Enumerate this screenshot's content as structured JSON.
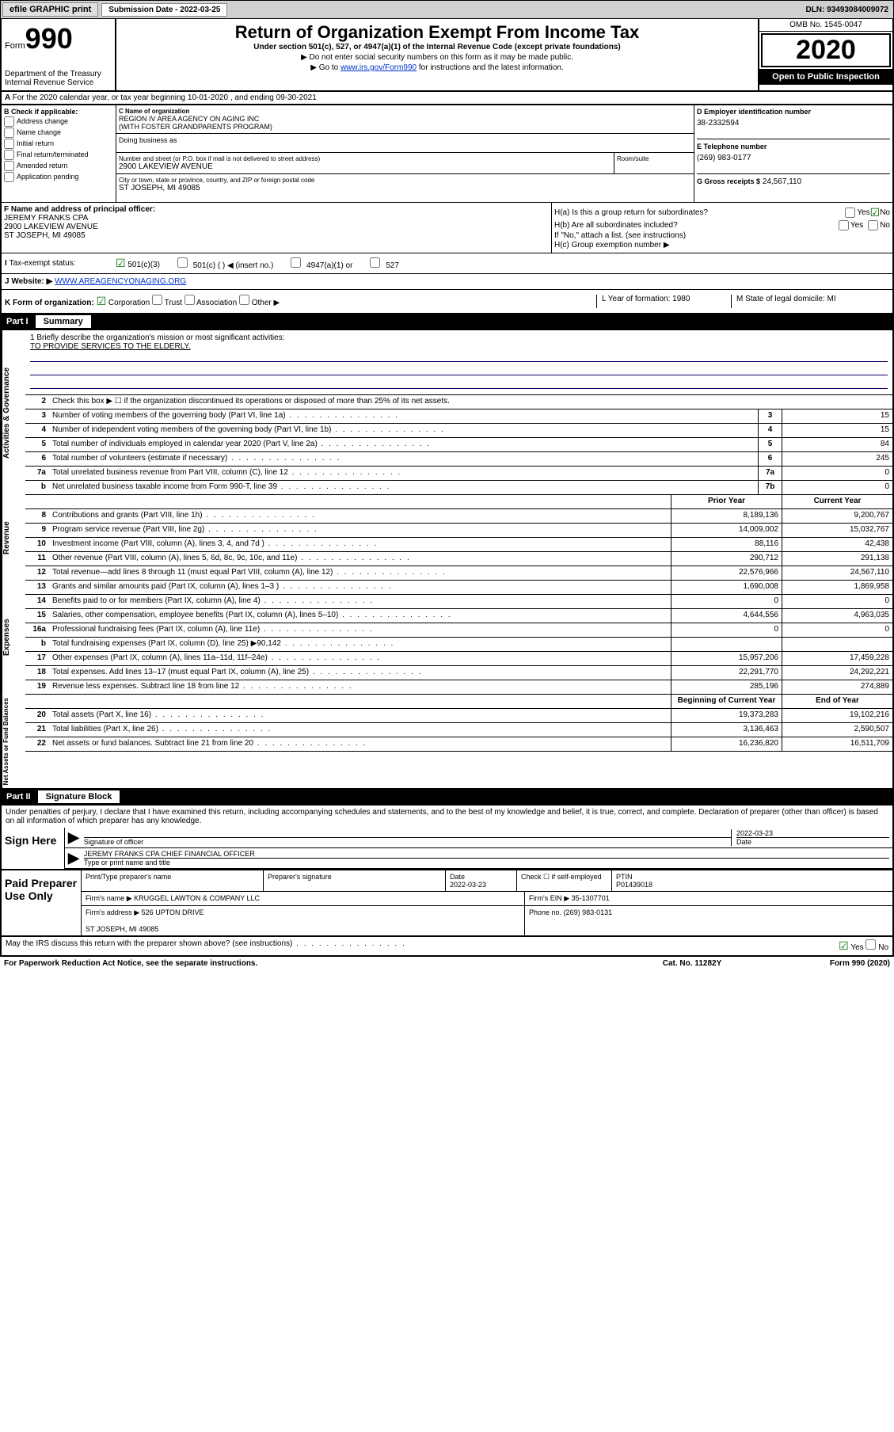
{
  "top": {
    "efile": "efile GRAPHIC print",
    "sub_label": "Submission Date - 2022-03-25",
    "dln": "DLN: 93493084009072"
  },
  "header": {
    "form_word": "Form",
    "form_num": "990",
    "dept": "Department of the Treasury\nInternal Revenue Service",
    "title": "Return of Organization Exempt From Income Tax",
    "sub": "Under section 501(c), 527, or 4947(a)(1) of the Internal Revenue Code (except private foundations)",
    "note1": "▶ Do not enter social security numbers on this form as it may be made public.",
    "note2_pre": "▶ Go to ",
    "note2_link": "www.irs.gov/Form990",
    "note2_post": " for instructions and the latest information.",
    "omb": "OMB No. 1545-0047",
    "year": "2020",
    "open": "Open to Public Inspection"
  },
  "row_a": "For the 2020 calendar year, or tax year beginning 10-01-2020   , and ending 09-30-2021",
  "box_b": {
    "label": "B Check if applicable:",
    "opts": [
      "Address change",
      "Name change",
      "Initial return",
      "Final return/terminated",
      "Amended return",
      "Application pending"
    ]
  },
  "box_c": {
    "name_lbl": "C Name of organization",
    "name": "REGION IV AREA AGENCY ON AGING INC\n(WITH FOSTER GRANDPARENTS PROGRAM)",
    "dba_lbl": "Doing business as",
    "addr_lbl": "Number and street (or P.O. box if mail is not delivered to street address)",
    "addr": "2900 LAKEVIEW AVENUE",
    "room_lbl": "Room/suite",
    "city_lbl": "City or town, state or province, country, and ZIP or foreign postal code",
    "city": "ST JOSEPH, MI  49085"
  },
  "box_d": {
    "lbl": "D Employer identification number",
    "val": "38-2332594"
  },
  "box_e": {
    "lbl": "E Telephone number",
    "val": "(269) 983-0177"
  },
  "box_g": {
    "lbl": "G Gross receipts $",
    "val": "24,567,110"
  },
  "box_f": {
    "lbl": "F Name and address of principal officer:",
    "name": "JEREMY FRANKS CPA",
    "addr": "2900 LAKEVIEW AVENUE\nST JOSEPH, MI  49085"
  },
  "box_h": {
    "a": "H(a)  Is this a group return for subordinates?",
    "b": "H(b)  Are all subordinates included?",
    "b_note": "If \"No,\" attach a list. (see instructions)",
    "c": "H(c)  Group exemption number ▶"
  },
  "tax_status": {
    "lbl": "Tax-exempt status:",
    "opts": [
      "501(c)(3)",
      "501(c) (  ) ◀ (insert no.)",
      "4947(a)(1) or",
      "527"
    ]
  },
  "row_j": {
    "lbl": "J Website: ▶",
    "val": "WWW.AREAGENCYONAGING.ORG"
  },
  "row_k": {
    "lbl": "K Form of organization:",
    "opts": [
      "Corporation",
      "Trust",
      "Association",
      "Other ▶"
    ],
    "l": "L Year of formation: 1980",
    "m": "M State of legal domicile: MI"
  },
  "part1": {
    "label": "Part I",
    "name": "Summary"
  },
  "mission": {
    "q": "1  Briefly describe the organization's mission or most significant activities:",
    "text": "TO PROVIDE SERVICES TO THE ELDERLY."
  },
  "gov_rows": [
    {
      "n": "2",
      "d": "Check this box ▶ ☐  if the organization discontinued its operations or disposed of more than 25% of its net assets."
    },
    {
      "n": "3",
      "d": "Number of voting members of the governing body (Part VI, line 1a)",
      "bn": "3",
      "v": "15"
    },
    {
      "n": "4",
      "d": "Number of independent voting members of the governing body (Part VI, line 1b)",
      "bn": "4",
      "v": "15"
    },
    {
      "n": "5",
      "d": "Total number of individuals employed in calendar year 2020 (Part V, line 2a)",
      "bn": "5",
      "v": "84"
    },
    {
      "n": "6",
      "d": "Total number of volunteers (estimate if necessary)",
      "bn": "6",
      "v": "245"
    },
    {
      "n": "7a",
      "d": "Total unrelated business revenue from Part VIII, column (C), line 12",
      "bn": "7a",
      "v": "0"
    },
    {
      "n": "b",
      "d": "Net unrelated business taxable income from Form 990-T, line 39",
      "bn": "7b",
      "v": "0"
    }
  ],
  "rev_header": {
    "py": "Prior Year",
    "cy": "Current Year"
  },
  "rev_rows": [
    {
      "n": "8",
      "d": "Contributions and grants (Part VIII, line 1h)",
      "py": "8,189,136",
      "cy": "9,200,767"
    },
    {
      "n": "9",
      "d": "Program service revenue (Part VIII, line 2g)",
      "py": "14,009,002",
      "cy": "15,032,767"
    },
    {
      "n": "10",
      "d": "Investment income (Part VIII, column (A), lines 3, 4, and 7d )",
      "py": "88,116",
      "cy": "42,438"
    },
    {
      "n": "11",
      "d": "Other revenue (Part VIII, column (A), lines 5, 6d, 8c, 9c, 10c, and 11e)",
      "py": "290,712",
      "cy": "291,138"
    },
    {
      "n": "12",
      "d": "Total revenue—add lines 8 through 11 (must equal Part VIII, column (A), line 12)",
      "py": "22,576,966",
      "cy": "24,567,110"
    }
  ],
  "exp_rows": [
    {
      "n": "13",
      "d": "Grants and similar amounts paid (Part IX, column (A), lines 1–3 )",
      "py": "1,690,008",
      "cy": "1,869,958"
    },
    {
      "n": "14",
      "d": "Benefits paid to or for members (Part IX, column (A), line 4)",
      "py": "0",
      "cy": "0"
    },
    {
      "n": "15",
      "d": "Salaries, other compensation, employee benefits (Part IX, column (A), lines 5–10)",
      "py": "4,644,556",
      "cy": "4,963,035"
    },
    {
      "n": "16a",
      "d": "Professional fundraising fees (Part IX, column (A), line 11e)",
      "py": "0",
      "cy": "0"
    },
    {
      "n": "b",
      "d": "Total fundraising expenses (Part IX, column (D), line 25) ▶90,142",
      "py": "",
      "cy": ""
    },
    {
      "n": "17",
      "d": "Other expenses (Part IX, column (A), lines 11a–11d, 11f–24e)",
      "py": "15,957,206",
      "cy": "17,459,228"
    },
    {
      "n": "18",
      "d": "Total expenses. Add lines 13–17 (must equal Part IX, column (A), line 25)",
      "py": "22,291,770",
      "cy": "24,292,221"
    },
    {
      "n": "19",
      "d": "Revenue less expenses. Subtract line 18 from line 12",
      "py": "285,196",
      "cy": "274,889"
    }
  ],
  "na_header": {
    "py": "Beginning of Current Year",
    "cy": "End of Year"
  },
  "na_rows": [
    {
      "n": "20",
      "d": "Total assets (Part X, line 16)",
      "py": "19,373,283",
      "cy": "19,102,216"
    },
    {
      "n": "21",
      "d": "Total liabilities (Part X, line 26)",
      "py": "3,136,463",
      "cy": "2,590,507"
    },
    {
      "n": "22",
      "d": "Net assets or fund balances. Subtract line 21 from line 20",
      "py": "16,236,820",
      "cy": "16,511,709"
    }
  ],
  "side_labels": {
    "gov": "Activities & Governance",
    "rev": "Revenue",
    "exp": "Expenses",
    "na": "Net Assets or Fund Balances"
  },
  "part2": {
    "label": "Part II",
    "name": "Signature Block"
  },
  "penalty": "Under penalties of perjury, I declare that I have examined this return, including accompanying schedules and statements, and to the best of my knowledge and belief, it is true, correct, and complete. Declaration of preparer (other than officer) is based on all information of which preparer has any knowledge.",
  "sign": {
    "here": "Sign Here",
    "sig_lbl": "Signature of officer",
    "date": "2022-03-23",
    "date_lbl": "Date",
    "name": "JEREMY FRANKS CPA  CHIEF FINANCIAL OFFICER",
    "name_lbl": "Type or print name and title"
  },
  "prep": {
    "label": "Paid Preparer Use Only",
    "c1": "Print/Type preparer's name",
    "c2": "Preparer's signature",
    "c3_lbl": "Date",
    "c3": "2022-03-23",
    "c4": "Check ☐ if self-employed",
    "c5_lbl": "PTIN",
    "c5": "P01439018",
    "firm_lbl": "Firm's name   ▶",
    "firm": "KRUGGEL LAWTON & COMPANY LLC",
    "ein_lbl": "Firm's EIN ▶",
    "ein": "35-1307701",
    "addr_lbl": "Firm's address ▶",
    "addr": "526 UPTON DRIVE\n\nST JOSEPH, MI  49085",
    "phone_lbl": "Phone no.",
    "phone": "(269) 983-0131"
  },
  "footer": {
    "discuss": "May the IRS discuss this return with the preparer shown above? (see instructions)",
    "pra": "For Paperwork Reduction Act Notice, see the separate instructions.",
    "cat": "Cat. No. 11282Y",
    "form": "Form 990 (2020)"
  }
}
